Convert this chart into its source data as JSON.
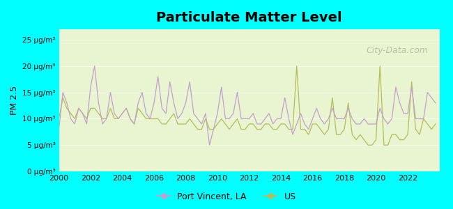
{
  "title": "Particulate Matter Level",
  "ylabel": "PM 2.5",
  "xlabel": "",
  "background_outer": "#00FFFF",
  "background_plot": "#e8f5d0",
  "ylim": [
    0,
    27
  ],
  "yticks": [
    0,
    5,
    10,
    15,
    20,
    25
  ],
  "ytick_labels": [
    "0 μg/m³",
    "5 μg/m³",
    "10 μg/m³",
    "15 μg/m³",
    "20 μg/m³",
    "25 μg/m³"
  ],
  "xlim": [
    2000,
    2024
  ],
  "xticks": [
    2000,
    2002,
    2004,
    2006,
    2008,
    2010,
    2012,
    2014,
    2016,
    2018,
    2020,
    2022
  ],
  "port_vincent_color": "#c49fcd",
  "us_color": "#b5bc5a",
  "port_vincent_data": {
    "x": [
      2000.0,
      2000.25,
      2000.5,
      2000.75,
      2001.0,
      2001.25,
      2001.5,
      2001.75,
      2002.0,
      2002.25,
      2002.5,
      2002.75,
      2003.0,
      2003.25,
      2003.5,
      2003.75,
      2004.0,
      2004.25,
      2004.5,
      2004.75,
      2005.0,
      2005.25,
      2005.5,
      2005.75,
      2006.0,
      2006.25,
      2006.5,
      2006.75,
      2007.0,
      2007.25,
      2007.5,
      2007.75,
      2008.0,
      2008.25,
      2008.5,
      2008.75,
      2009.0,
      2009.25,
      2009.5,
      2009.75,
      2010.0,
      2010.25,
      2010.5,
      2010.75,
      2011.0,
      2011.25,
      2011.5,
      2011.75,
      2012.0,
      2012.25,
      2012.5,
      2012.75,
      2013.0,
      2013.25,
      2013.5,
      2013.75,
      2014.0,
      2014.25,
      2014.5,
      2014.75,
      2015.0,
      2015.25,
      2015.5,
      2015.75,
      2016.0,
      2016.25,
      2016.5,
      2016.75,
      2017.0,
      2017.25,
      2017.5,
      2017.75,
      2018.0,
      2018.25,
      2018.5,
      2018.75,
      2019.0,
      2019.25,
      2019.5,
      2019.75,
      2020.0,
      2020.25,
      2020.5,
      2020.75,
      2021.0,
      2021.25,
      2021.5,
      2021.75,
      2022.0,
      2022.25,
      2022.5,
      2022.75,
      2023.0,
      2023.25,
      2023.5,
      2023.75
    ],
    "y": [
      8,
      15,
      13,
      10,
      9,
      12,
      11,
      9,
      16,
      20,
      13,
      9,
      10,
      15,
      11,
      10,
      11,
      12,
      10,
      9,
      13,
      15,
      11,
      10,
      13,
      18,
      12,
      11,
      17,
      13,
      10,
      11,
      13,
      17,
      11,
      10,
      9,
      11,
      5,
      8,
      11,
      16,
      10,
      10,
      11,
      15,
      10,
      10,
      10,
      11,
      9,
      9,
      10,
      11,
      9,
      10,
      10,
      14,
      10,
      7,
      9,
      11,
      9,
      8,
      10,
      12,
      10,
      9,
      10,
      12,
      10,
      10,
      10,
      12,
      10,
      9,
      9,
      10,
      9,
      9,
      9,
      12,
      10,
      9,
      10,
      16,
      13,
      11,
      11,
      16,
      10,
      10,
      10,
      15,
      14,
      13
    ]
  },
  "us_data": {
    "x": [
      2000.0,
      2000.25,
      2000.5,
      2000.75,
      2001.0,
      2001.25,
      2001.5,
      2001.75,
      2002.0,
      2002.25,
      2002.5,
      2002.75,
      2003.0,
      2003.25,
      2003.5,
      2003.75,
      2004.0,
      2004.25,
      2004.5,
      2004.75,
      2005.0,
      2005.25,
      2005.5,
      2005.75,
      2006.0,
      2006.25,
      2006.5,
      2006.75,
      2007.0,
      2007.25,
      2007.5,
      2007.75,
      2008.0,
      2008.25,
      2008.5,
      2008.75,
      2009.0,
      2009.25,
      2009.5,
      2009.75,
      2010.0,
      2010.25,
      2010.5,
      2010.75,
      2011.0,
      2011.25,
      2011.5,
      2011.75,
      2012.0,
      2012.25,
      2012.5,
      2012.75,
      2013.0,
      2013.25,
      2013.5,
      2013.75,
      2014.0,
      2014.25,
      2014.5,
      2014.75,
      2015.0,
      2015.25,
      2015.5,
      2015.75,
      2016.0,
      2016.25,
      2016.5,
      2016.75,
      2017.0,
      2017.25,
      2017.5,
      2017.75,
      2018.0,
      2018.25,
      2018.5,
      2018.75,
      2019.0,
      2019.25,
      2019.5,
      2019.75,
      2020.0,
      2020.25,
      2020.5,
      2020.75,
      2021.0,
      2021.25,
      2021.5,
      2021.75,
      2022.0,
      2022.25,
      2022.5,
      2022.75,
      2023.0,
      2023.25,
      2023.5,
      2023.75
    ],
    "y": [
      10,
      14,
      12,
      11,
      10,
      12,
      11,
      10,
      12,
      12,
      11,
      10,
      10,
      12,
      10,
      10,
      11,
      12,
      10,
      9,
      12,
      11,
      10,
      10,
      10,
      10,
      9,
      9,
      10,
      11,
      9,
      9,
      9,
      10,
      9,
      8,
      8,
      10,
      8,
      8,
      9,
      10,
      9,
      8,
      9,
      10,
      8,
      8,
      9,
      9,
      8,
      8,
      9,
      9,
      8,
      8,
      9,
      9,
      8,
      8,
      20,
      8,
      8,
      7,
      9,
      9,
      8,
      7,
      8,
      14,
      7,
      7,
      8,
      13,
      7,
      6,
      7,
      6,
      5,
      5,
      6,
      20,
      5,
      5,
      7,
      7,
      6,
      6,
      7,
      17,
      8,
      7,
      10,
      9,
      8,
      9
    ]
  },
  "legend_port_vincent": "Port Vincent, LA",
  "legend_us": "US",
  "watermark": "City-Data.com"
}
